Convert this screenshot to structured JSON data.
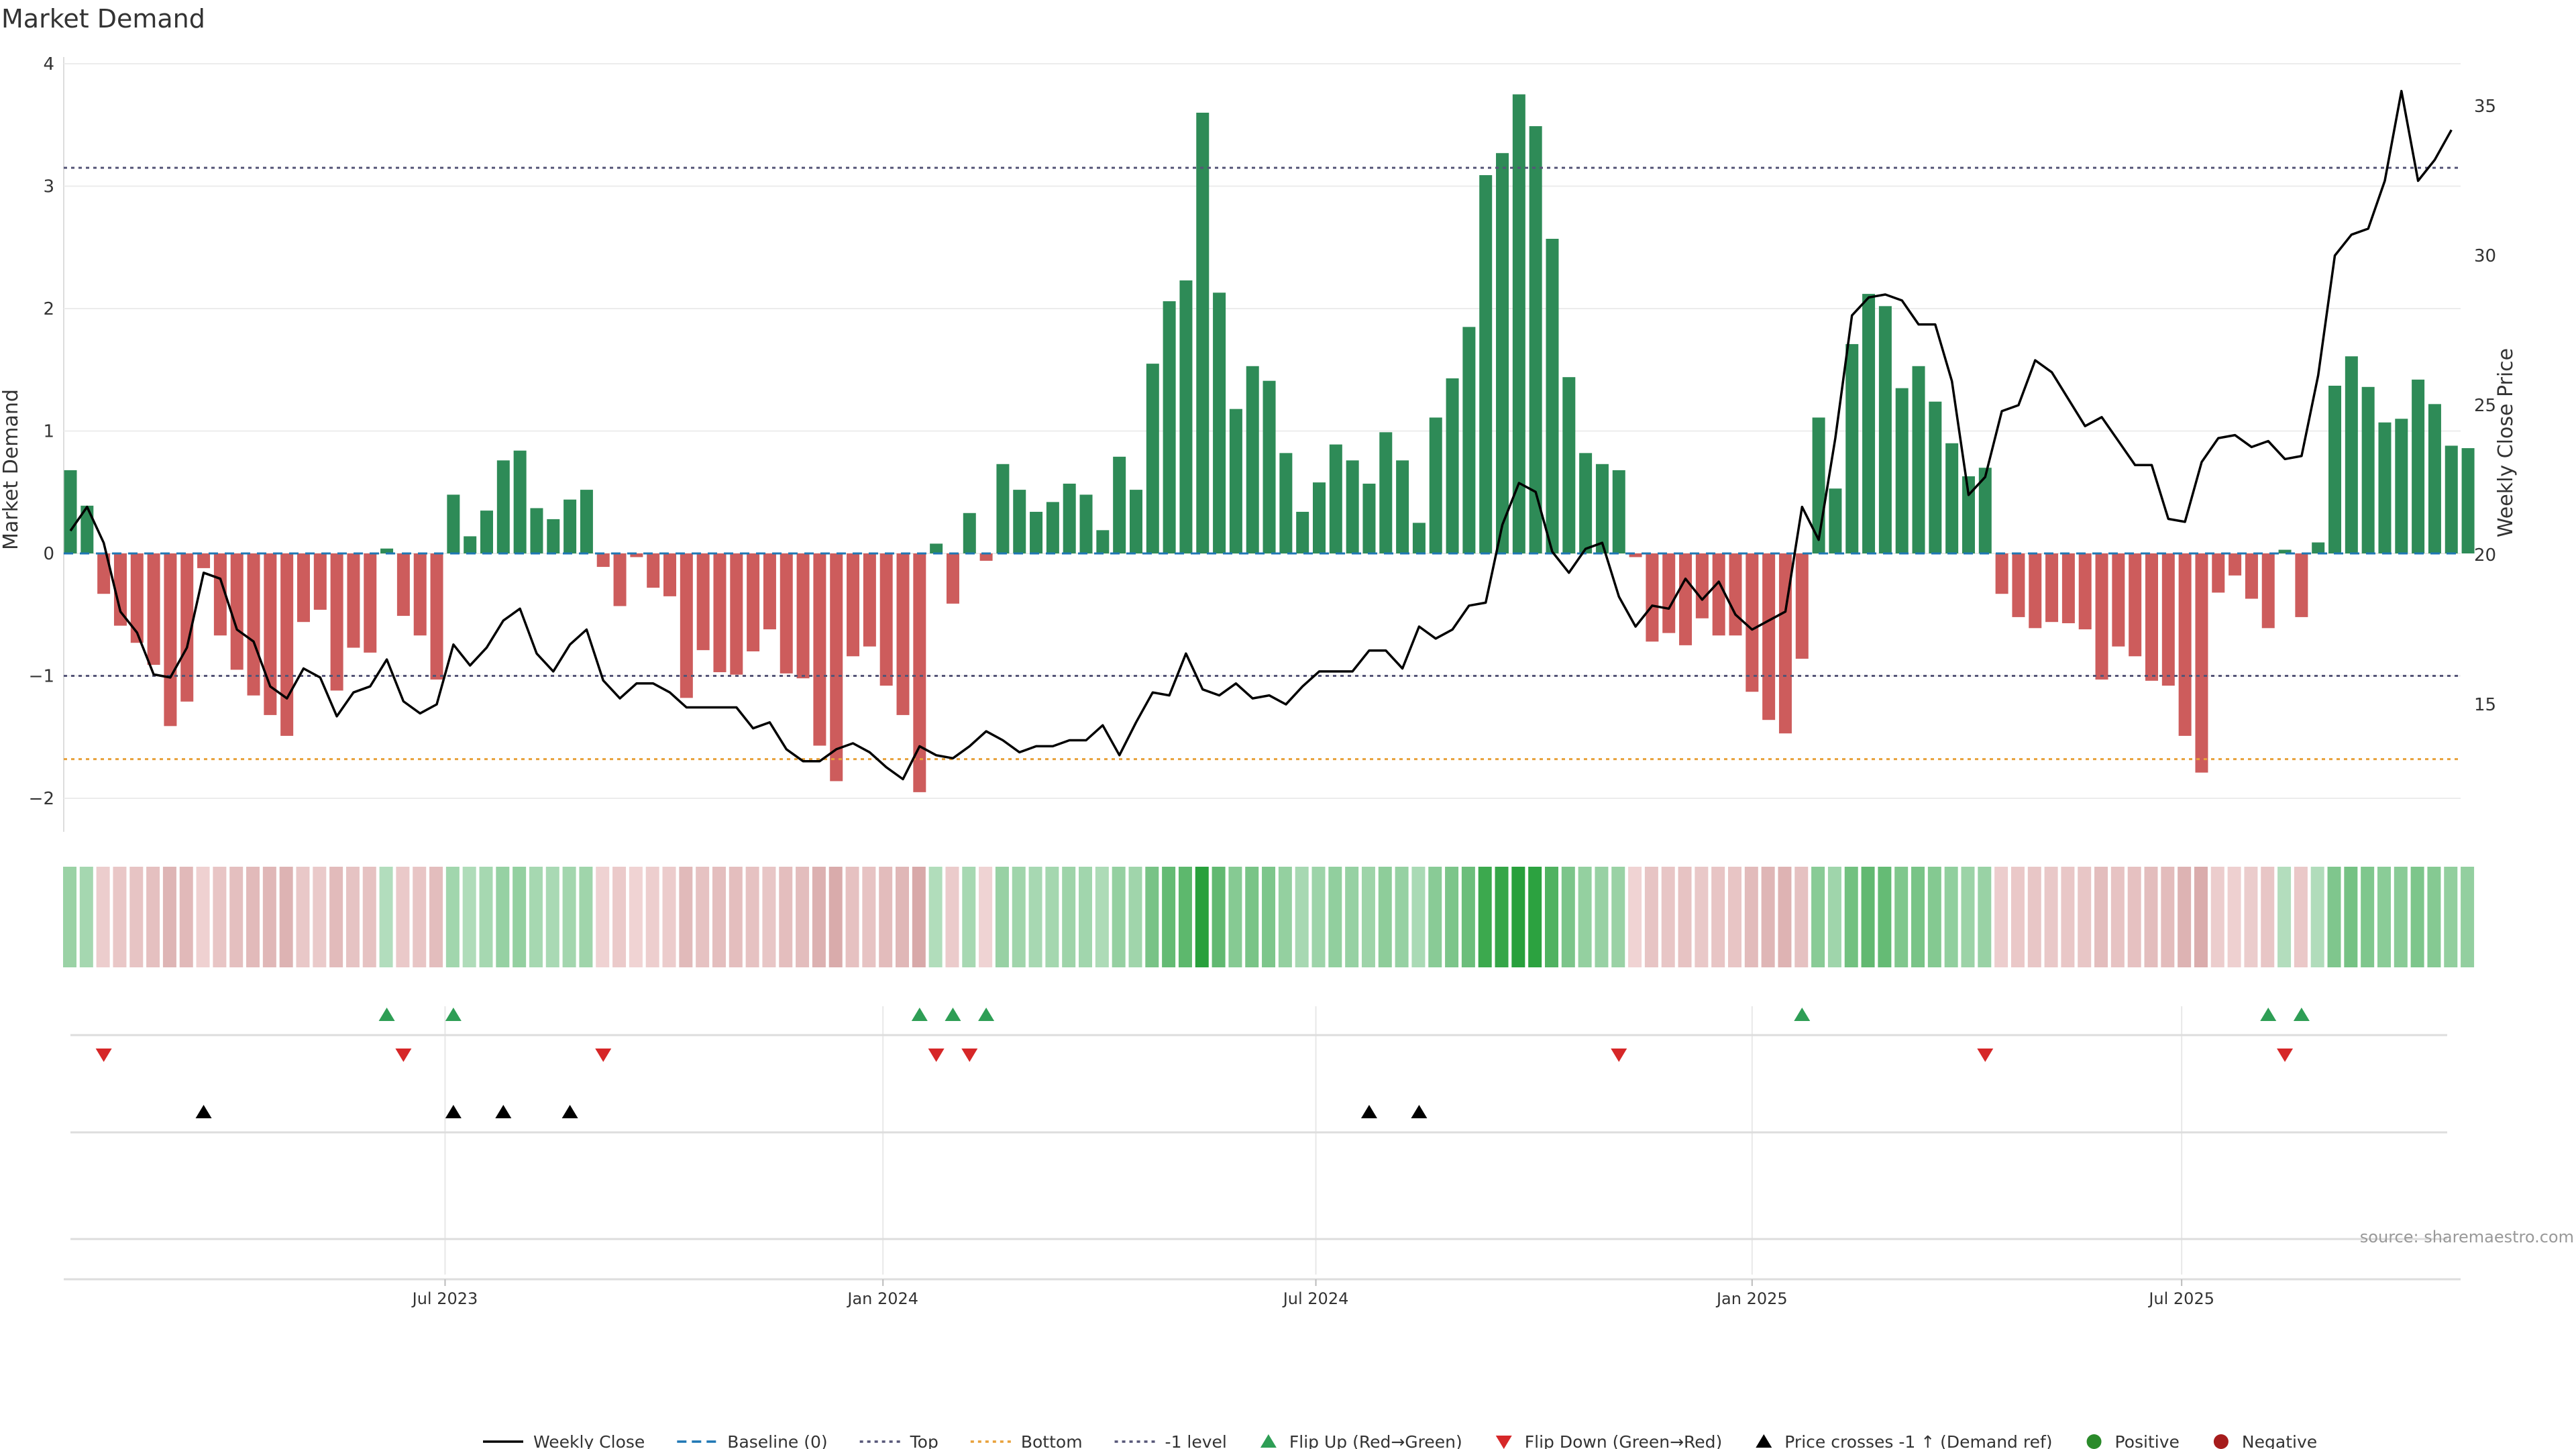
{
  "chart_data": {
    "type": "bar",
    "title": "Market Demand",
    "ylabel": "Market Demand",
    "y2label": "Weekly Close Price",
    "ylim": [
      -2.3,
      4.0
    ],
    "y2lim": [
      11.5,
      36.8
    ],
    "yticks": [
      -2,
      -1,
      0,
      1,
      2,
      3,
      4
    ],
    "y2ticks": [
      15,
      20,
      25,
      30,
      35
    ],
    "x_ticks": [
      "Jul 2023",
      "Jan 2024",
      "Jul 2024",
      "Jan 2025",
      "Jul 2025"
    ],
    "x_tick_weeks": [
      22.5,
      48.8,
      74.8,
      101.0,
      126.8
    ],
    "levels": {
      "top": 3.15,
      "bottom": -1.68,
      "minus_one": -1.0,
      "baseline": 0
    },
    "demand": [
      0.68,
      0.39,
      -0.33,
      -0.59,
      -0.73,
      -0.91,
      -1.41,
      -1.21,
      -0.12,
      -0.67,
      -0.95,
      -1.16,
      -1.32,
      -1.49,
      -0.56,
      -0.46,
      -1.12,
      -0.77,
      -0.81,
      0.04,
      -0.51,
      -0.67,
      -1.03,
      0.48,
      0.14,
      0.35,
      0.76,
      0.84,
      0.37,
      0.28,
      0.44,
      0.52,
      -0.11,
      -0.43,
      -0.03,
      -0.28,
      -0.35,
      -1.18,
      -0.79,
      -0.97,
      -0.99,
      -0.8,
      -0.62,
      -0.98,
      -1.02,
      -1.57,
      -1.86,
      -0.84,
      -0.76,
      -1.08,
      -1.32,
      -1.95,
      0.08,
      -0.41,
      0.33,
      -0.06,
      0.73,
      0.52,
      0.34,
      0.42,
      0.57,
      0.48,
      0.19,
      0.79,
      0.52,
      1.55,
      2.06,
      2.23,
      3.6,
      2.13,
      1.18,
      1.53,
      1.41,
      0.82,
      0.34,
      0.58,
      0.89,
      0.76,
      0.57,
      0.99,
      0.76,
      0.25,
      1.11,
      1.43,
      1.85,
      3.09,
      3.27,
      3.75,
      3.49,
      2.57,
      1.44,
      0.82,
      0.73,
      0.68,
      -0.03,
      -0.72,
      -0.65,
      -0.75,
      -0.53,
      -0.67,
      -0.67,
      -1.13,
      -1.36,
      -1.47,
      -0.86,
      1.11,
      0.53,
      1.71,
      2.12,
      2.02,
      1.35,
      1.53,
      1.24,
      0.9,
      0.63,
      0.7,
      -0.33,
      -0.52,
      -0.61,
      -0.56,
      -0.57,
      -0.62,
      -1.03,
      -0.76,
      -0.84,
      -1.04,
      -1.08,
      -1.49,
      -1.79,
      -0.32,
      -0.18,
      -0.37,
      -0.61,
      0.03,
      -0.52,
      0.09,
      1.37,
      1.61,
      1.36,
      1.07,
      1.1,
      1.42,
      1.22,
      0.88,
      0.86
    ],
    "price": [
      20.8,
      21.6,
      20.4,
      18.1,
      17.4,
      16.0,
      15.9,
      16.9,
      19.4,
      19.2,
      17.5,
      17.1,
      15.6,
      15.2,
      16.2,
      15.9,
      14.6,
      15.4,
      15.6,
      16.5,
      15.1,
      14.7,
      15.0,
      17.0,
      16.3,
      16.9,
      17.8,
      18.2,
      16.7,
      16.1,
      17.0,
      17.5,
      15.8,
      15.2,
      15.7,
      15.7,
      15.4,
      14.9,
      14.9,
      14.9,
      14.9,
      14.2,
      14.4,
      13.5,
      13.1,
      13.1,
      13.5,
      13.7,
      13.4,
      12.9,
      12.5,
      13.6,
      13.3,
      13.2,
      13.6,
      14.1,
      13.8,
      13.4,
      13.6,
      13.6,
      13.8,
      13.8,
      14.3,
      13.3,
      14.4,
      15.4,
      15.3,
      16.7,
      15.5,
      15.3,
      15.7,
      15.2,
      15.3,
      15.0,
      15.6,
      16.1,
      16.1,
      16.1,
      16.8,
      16.8,
      16.2,
      17.6,
      17.2,
      17.5,
      18.3,
      18.4,
      21.0,
      22.4,
      22.1,
      20.1,
      19.4,
      20.2,
      20.4,
      18.6,
      17.6,
      18.3,
      18.2,
      19.2,
      18.5,
      19.1,
      18.0,
      17.5,
      17.8,
      18.1,
      21.6,
      20.5,
      23.9,
      28.0,
      28.6,
      28.7,
      28.5,
      27.7,
      27.7,
      25.8,
      22.0,
      22.6,
      24.8,
      25.0,
      26.5,
      26.1,
      25.2,
      24.3,
      24.6,
      23.8,
      23.0,
      23.0,
      21.2,
      21.1,
      23.1,
      23.9,
      24.0,
      23.6,
      23.8,
      23.2,
      23.3,
      26.0,
      30.0,
      30.7,
      30.9,
      32.5,
      35.5,
      32.5,
      33.2,
      34.2
    ],
    "sentiment_strip": "per-week color intensity mirrors demand value (green positive, red negative)",
    "flip_up_weeks": [
      19,
      23,
      51,
      53,
      55,
      104,
      132,
      134
    ],
    "flip_down_weeks": [
      2,
      20,
      32,
      52,
      54,
      93,
      115,
      133
    ],
    "price_cross_weeks": [
      8,
      23,
      26,
      30,
      78,
      81
    ],
    "legend": [
      {
        "label": "Weekly Close",
        "kind": "line-solid",
        "color": "#000000"
      },
      {
        "label": "Baseline (0)",
        "kind": "line-dash",
        "color": "#1f77b4"
      },
      {
        "label": "Top",
        "kind": "line-dot",
        "color": "#555577"
      },
      {
        "label": "Bottom",
        "kind": "line-dot",
        "color": "#e8a13a"
      },
      {
        "label": "-1 level",
        "kind": "line-dot",
        "color": "#555577"
      },
      {
        "label": "Flip Up (Red→Green)",
        "kind": "tri-up",
        "color": "#2e9e55"
      },
      {
        "label": "Flip Down (Green→Red)",
        "kind": "tri-down",
        "color": "#d62728"
      },
      {
        "label": "Price crosses -1 ↑ (Demand ref)",
        "kind": "tri-up",
        "color": "#000000"
      },
      {
        "label": "Positive",
        "kind": "dot",
        "color": "#2a8a2a"
      },
      {
        "label": "Negative",
        "kind": "dot",
        "color": "#a61c1c"
      }
    ],
    "source": "source: sharemaestro.com",
    "colors": {
      "positive_bar": "#2e8b57",
      "negative_bar": "#cd5c5c"
    }
  }
}
